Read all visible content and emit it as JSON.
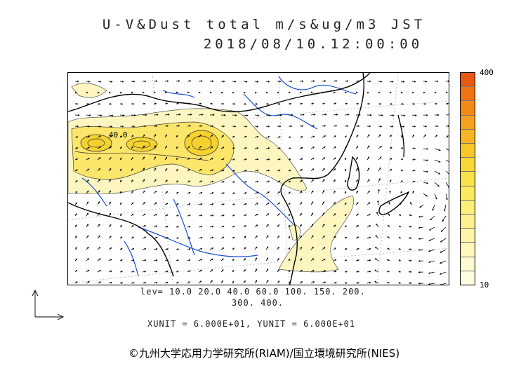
{
  "title": {
    "line1": "U-V&Dust total m/s&ug/m3 JST",
    "line2": "2018/08/10.12:00:00"
  },
  "colorbar": {
    "max_label": "400",
    "min_label": "10",
    "colors": [
      "#e85a10",
      "#f07414",
      "#f38a18",
      "#f5a01e",
      "#f7b424",
      "#f8c82a",
      "#f9d836",
      "#fae24a",
      "#fbe960",
      "#fcee7a",
      "#fdf292",
      "#fdf5a8",
      "#fef8bd",
      "#fefad0",
      "#fefce2"
    ]
  },
  "levels": {
    "line1": "lev= 10.0 20.0 40.0 60.0 100. 150. 200.",
    "line2": "300. 400."
  },
  "units_text": "XUNIT = 6.000E+01, YUNIT = 6.000E+01",
  "contour_label": "40.0",
  "copyright": "©九州大学応用力学研究所(RIAM)/国立環境研究所(NIES)",
  "colors": {
    "coast": "#000000",
    "river": "#1a4fd6",
    "grid": "#999999",
    "dust_light": "#fdf6c0",
    "dust_mid": "#fbe56a",
    "dust_high": "#f5d230"
  }
}
